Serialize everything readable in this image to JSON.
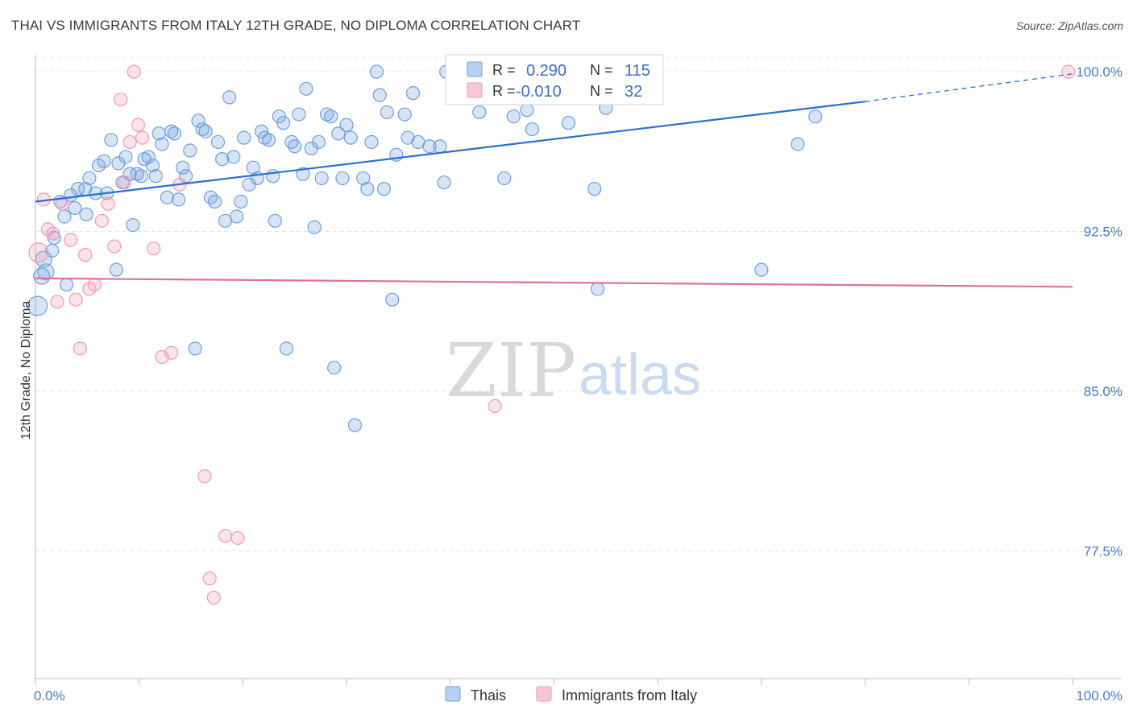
{
  "title": "THAI VS IMMIGRANTS FROM ITALY 12TH GRADE, NO DIPLOMA CORRELATION CHART",
  "source": "Source: ZipAtlas.com",
  "watermark": {
    "zip": "ZIP",
    "atlas": "atlas"
  },
  "chart_data": {
    "type": "scatter",
    "title": "THAI VS IMMIGRANTS FROM ITALY 12TH GRADE, NO DIPLOMA CORRELATION CHART",
    "xlabel": "",
    "ylabel": "12th Grade, No Diploma",
    "xlim": [
      0,
      100
    ],
    "ylim": [
      71.5,
      100.8
    ],
    "x_tick_labels": [
      "0.0%",
      "100.0%"
    ],
    "y_ticks": [
      77.5,
      85.0,
      92.5,
      100.0
    ],
    "y_tick_labels": [
      "77.5%",
      "85.0%",
      "92.5%",
      "100.0%"
    ],
    "grid": true,
    "legend_position": "top-center",
    "colors": {
      "thais": "#6f9fe0",
      "italy": "#f09ab6",
      "thais_line": "#2a6fcf",
      "italy_line": "#e0709a",
      "tick_text": "#4a78c9"
    },
    "stats_legend": [
      {
        "r_label": "R =",
        "r": "0.290",
        "n_label": "N =",
        "n": "115"
      },
      {
        "r_label": "R =",
        "r": "-0.010",
        "n_label": "N =",
        "n": "32"
      }
    ],
    "series": [
      {
        "name": "Thais",
        "trend": {
          "x0": 0,
          "y0": 93.9,
          "x1": 80,
          "y1": 98.6,
          "dash_to_x": 100,
          "dash_to_y": 99.9
        },
        "points": [
          [
            0.2,
            89.0
          ],
          [
            0.6,
            90.4
          ],
          [
            0.8,
            91.2
          ],
          [
            1.0,
            90.6
          ],
          [
            1.6,
            91.6
          ],
          [
            1.8,
            92.2
          ],
          [
            2.4,
            93.9
          ],
          [
            2.8,
            93.2
          ],
          [
            3.0,
            90.0
          ],
          [
            3.4,
            94.2
          ],
          [
            3.8,
            93.6
          ],
          [
            4.1,
            94.5
          ],
          [
            4.8,
            94.5
          ],
          [
            4.9,
            93.3
          ],
          [
            5.2,
            95.0
          ],
          [
            5.8,
            94.3
          ],
          [
            6.1,
            95.6
          ],
          [
            6.6,
            95.8
          ],
          [
            6.9,
            94.3
          ],
          [
            7.3,
            96.8
          ],
          [
            7.8,
            90.7
          ],
          [
            8.0,
            95.7
          ],
          [
            8.4,
            94.8
          ],
          [
            8.7,
            96.0
          ],
          [
            9.1,
            95.2
          ],
          [
            9.4,
            92.8
          ],
          [
            9.8,
            95.2
          ],
          [
            10.2,
            95.1
          ],
          [
            10.5,
            95.9
          ],
          [
            10.9,
            96.0
          ],
          [
            11.3,
            95.6
          ],
          [
            11.6,
            95.1
          ],
          [
            11.9,
            97.1
          ],
          [
            12.2,
            96.6
          ],
          [
            12.7,
            94.1
          ],
          [
            13.1,
            97.2
          ],
          [
            13.4,
            97.1
          ],
          [
            13.8,
            94.0
          ],
          [
            14.2,
            95.5
          ],
          [
            14.5,
            95.1
          ],
          [
            14.9,
            96.3
          ],
          [
            15.4,
            87.0
          ],
          [
            15.7,
            97.7
          ],
          [
            16.1,
            97.3
          ],
          [
            16.4,
            97.2
          ],
          [
            16.9,
            94.1
          ],
          [
            17.3,
            93.9
          ],
          [
            17.6,
            96.7
          ],
          [
            18.0,
            95.9
          ],
          [
            18.3,
            93.0
          ],
          [
            18.7,
            98.8
          ],
          [
            19.1,
            96.0
          ],
          [
            19.4,
            93.2
          ],
          [
            19.8,
            93.9
          ],
          [
            20.1,
            96.9
          ],
          [
            20.6,
            94.7
          ],
          [
            21.0,
            95.5
          ],
          [
            21.4,
            95.0
          ],
          [
            21.8,
            97.2
          ],
          [
            22.1,
            96.9
          ],
          [
            22.5,
            96.8
          ],
          [
            22.9,
            95.1
          ],
          [
            23.1,
            93.0
          ],
          [
            23.5,
            97.9
          ],
          [
            23.9,
            97.6
          ],
          [
            24.2,
            87.0
          ],
          [
            24.7,
            96.7
          ],
          [
            25.0,
            96.5
          ],
          [
            25.4,
            98.0
          ],
          [
            25.8,
            95.2
          ],
          [
            26.1,
            99.2
          ],
          [
            26.6,
            96.4
          ],
          [
            26.9,
            92.7
          ],
          [
            27.3,
            96.7
          ],
          [
            27.6,
            95.0
          ],
          [
            28.1,
            98.0
          ],
          [
            28.5,
            97.9
          ],
          [
            28.8,
            86.1
          ],
          [
            29.2,
            97.1
          ],
          [
            29.6,
            95.0
          ],
          [
            30.0,
            97.5
          ],
          [
            30.4,
            96.9
          ],
          [
            30.8,
            83.4
          ],
          [
            31.6,
            95.0
          ],
          [
            32.0,
            94.5
          ],
          [
            32.4,
            96.7
          ],
          [
            32.9,
            100.0
          ],
          [
            33.2,
            98.9
          ],
          [
            33.6,
            94.5
          ],
          [
            33.9,
            98.1
          ],
          [
            34.4,
            89.3
          ],
          [
            34.8,
            96.1
          ],
          [
            35.6,
            98.0
          ],
          [
            35.9,
            96.9
          ],
          [
            36.4,
            99.0
          ],
          [
            36.9,
            96.7
          ],
          [
            38.0,
            96.5
          ],
          [
            39.0,
            96.5
          ],
          [
            39.4,
            94.8
          ],
          [
            39.6,
            100.0
          ],
          [
            41.8,
            100.0
          ],
          [
            42.8,
            98.1
          ],
          [
            44.0,
            99.2
          ],
          [
            45.2,
            95.0
          ],
          [
            46.1,
            97.9
          ],
          [
            47.4,
            98.2
          ],
          [
            47.9,
            97.3
          ],
          [
            49.5,
            99.3
          ],
          [
            51.4,
            97.6
          ],
          [
            53.9,
            94.5
          ],
          [
            54.2,
            89.8
          ],
          [
            70.0,
            90.7
          ],
          [
            73.5,
            96.6
          ],
          [
            75.2,
            97.9
          ],
          [
            55.0,
            98.3
          ]
        ]
      },
      {
        "name": "Immigrants from Italy",
        "trend": {
          "x0": 0,
          "y0": 90.3,
          "x1": 100,
          "y1": 89.9
        },
        "points": [
          [
            0.3,
            91.5
          ],
          [
            0.8,
            94.0
          ],
          [
            1.2,
            92.6
          ],
          [
            1.7,
            92.4
          ],
          [
            2.1,
            89.2
          ],
          [
            2.6,
            93.8
          ],
          [
            3.4,
            92.1
          ],
          [
            3.9,
            89.3
          ],
          [
            4.3,
            87.0
          ],
          [
            4.8,
            91.4
          ],
          [
            5.2,
            89.8
          ],
          [
            5.7,
            90.0
          ],
          [
            6.4,
            93.0
          ],
          [
            7.0,
            93.8
          ],
          [
            7.6,
            91.8
          ],
          [
            8.2,
            98.7
          ],
          [
            8.6,
            94.8
          ],
          [
            9.1,
            96.7
          ],
          [
            9.5,
            100.0
          ],
          [
            9.9,
            97.5
          ],
          [
            10.3,
            96.9
          ],
          [
            11.4,
            91.7
          ],
          [
            12.2,
            86.6
          ],
          [
            13.1,
            86.8
          ],
          [
            13.9,
            94.7
          ],
          [
            16.3,
            81.0
          ],
          [
            16.8,
            76.2
          ],
          [
            17.2,
            75.3
          ],
          [
            18.3,
            78.2
          ],
          [
            19.5,
            78.1
          ],
          [
            44.3,
            84.3
          ],
          [
            99.6,
            100.0
          ]
        ]
      }
    ]
  },
  "bottom_legend": [
    {
      "label": "Thais",
      "color": "#6f9fe0"
    },
    {
      "label": "Immigrants from Italy",
      "color": "#f09ab6"
    }
  ]
}
